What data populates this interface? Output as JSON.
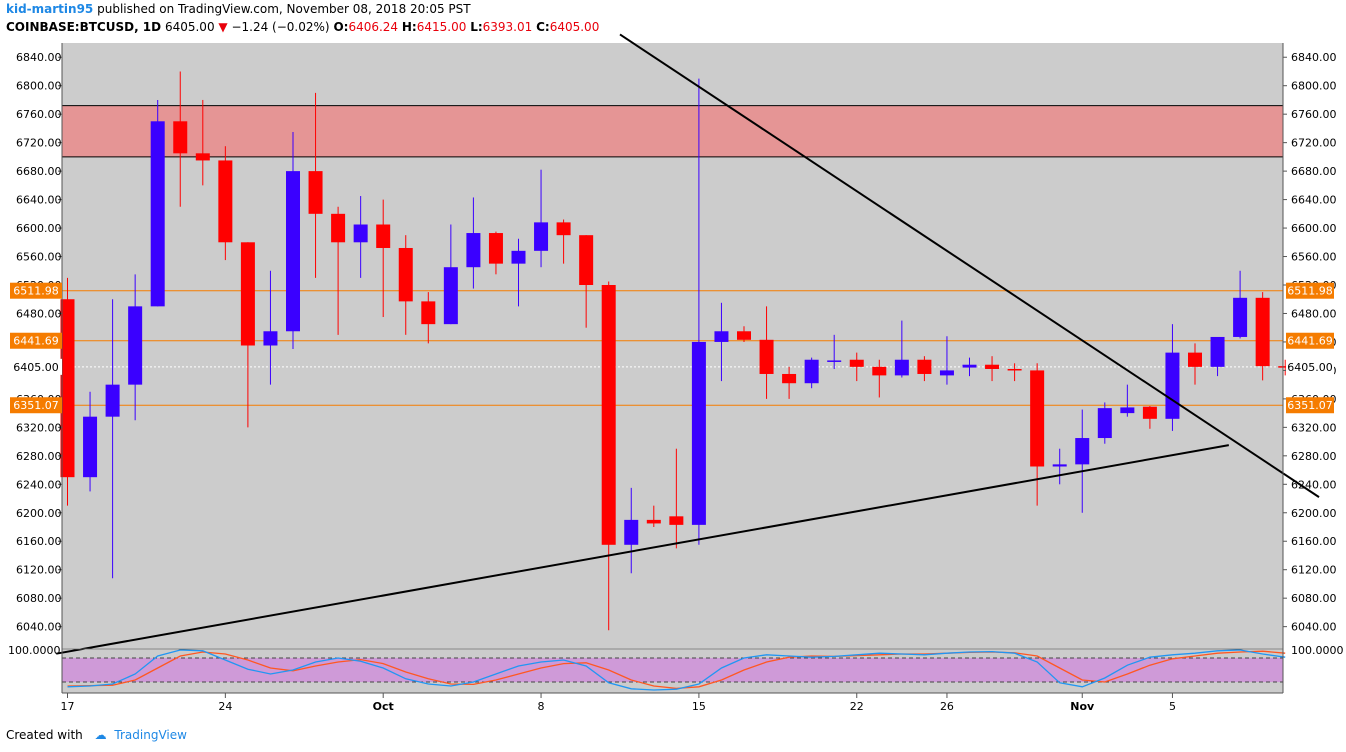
{
  "header": {
    "user": "kid-martin95",
    "published": "published on TradingView.com, November 08, 2018 20:05 PST",
    "symbol": "COINBASE:BTCUSD, 1D",
    "last": "6405.00",
    "change": "−1.24 (−0.02%)",
    "o_label": "O:",
    "o_val": "6406.24",
    "h_label": "H:",
    "h_val": "6415.00",
    "l_label": "L:",
    "l_val": "6393.01",
    "c_label": "C:",
    "c_val": "6405.00"
  },
  "footer": {
    "created": "Created with",
    "brand": "TradingView"
  },
  "colors": {
    "plot_bg": "#cccccc",
    "up": "#3a00ff",
    "down": "#ff0000",
    "zone": "#e59595",
    "level": "#f57c00",
    "osc_band": "#cf9ad8",
    "osc_k": "#2196f3",
    "osc_d": "#ff5722"
  },
  "chart_data": {
    "type": "candlestick",
    "ylim": [
      6010,
      6860
    ],
    "y_ticks": [
      "6040.00",
      "6080.00",
      "6120.00",
      "6160.00",
      "6200.00",
      "6240.00",
      "6280.00",
      "6320.00",
      "6360.00",
      "6400.00",
      "6440.00",
      "6480.00",
      "6520.00",
      "6560.00",
      "6600.00",
      "6640.00",
      "6680.00",
      "6720.00",
      "6760.00",
      "6800.00",
      "6840.00"
    ],
    "x_ticks": [
      {
        "label": "17",
        "day": 0
      },
      {
        "label": "24",
        "day": 7
      },
      {
        "label": "Oct",
        "day": 14
      },
      {
        "label": "8",
        "day": 21
      },
      {
        "label": "15",
        "day": 28
      },
      {
        "label": "22",
        "day": 35
      },
      {
        "label": "26",
        "day": 39
      },
      {
        "label": "Nov",
        "day": 45
      },
      {
        "label": "5",
        "day": 49
      }
    ],
    "candles": [
      {
        "o": 6500,
        "h": 6530,
        "l": 6210,
        "c": 6250
      },
      {
        "o": 6250,
        "h": 6370,
        "l": 6230,
        "c": 6335
      },
      {
        "o": 6335,
        "h": 6500,
        "l": 6108,
        "c": 6380
      },
      {
        "o": 6380,
        "h": 6535,
        "l": 6330,
        "c": 6490
      },
      {
        "o": 6490,
        "h": 6780,
        "l": 6490,
        "c": 6750
      },
      {
        "o": 6750,
        "h": 6820,
        "l": 6630,
        "c": 6705
      },
      {
        "o": 6705,
        "h": 6780,
        "l": 6660,
        "c": 6695
      },
      {
        "o": 6695,
        "h": 6715,
        "l": 6555,
        "c": 6580
      },
      {
        "o": 6580,
        "h": 6580,
        "l": 6320,
        "c": 6435
      },
      {
        "o": 6435,
        "h": 6540,
        "l": 6380,
        "c": 6455
      },
      {
        "o": 6455,
        "h": 6735,
        "l": 6430,
        "c": 6680
      },
      {
        "o": 6680,
        "h": 6790,
        "l": 6530,
        "c": 6620
      },
      {
        "o": 6620,
        "h": 6630,
        "l": 6450,
        "c": 6580
      },
      {
        "o": 6580,
        "h": 6645,
        "l": 6530,
        "c": 6605
      },
      {
        "o": 6605,
        "h": 6640,
        "l": 6475,
        "c": 6572
      },
      {
        "o": 6572,
        "h": 6590,
        "l": 6450,
        "c": 6497
      },
      {
        "o": 6497,
        "h": 6510,
        "l": 6438,
        "c": 6465
      },
      {
        "o": 6465,
        "h": 6605,
        "l": 6465,
        "c": 6545
      },
      {
        "o": 6545,
        "h": 6643,
        "l": 6515,
        "c": 6593
      },
      {
        "o": 6593,
        "h": 6595,
        "l": 6535,
        "c": 6550
      },
      {
        "o": 6550,
        "h": 6585,
        "l": 6490,
        "c": 6568
      },
      {
        "o": 6568,
        "h": 6682,
        "l": 6545,
        "c": 6608
      },
      {
        "o": 6608,
        "h": 6612,
        "l": 6550,
        "c": 6590
      },
      {
        "o": 6590,
        "h": 6590,
        "l": 6460,
        "c": 6520
      },
      {
        "o": 6520,
        "h": 6525,
        "l": 6035,
        "c": 6155
      },
      {
        "o": 6155,
        "h": 6235,
        "l": 6115,
        "c": 6190
      },
      {
        "o": 6190,
        "h": 6210,
        "l": 6180,
        "c": 6185
      },
      {
        "o": 6195,
        "h": 6290,
        "l": 6150,
        "c": 6183
      },
      {
        "o": 6183,
        "h": 6810,
        "l": 6155,
        "c": 6440
      },
      {
        "o": 6440,
        "h": 6495,
        "l": 6385,
        "c": 6455
      },
      {
        "o": 6455,
        "h": 6462,
        "l": 6440,
        "c": 6443
      },
      {
        "o": 6443,
        "h": 6490,
        "l": 6360,
        "c": 6395
      },
      {
        "o": 6395,
        "h": 6405,
        "l": 6360,
        "c": 6382
      },
      {
        "o": 6382,
        "h": 6418,
        "l": 6375,
        "c": 6415
      },
      {
        "o": 6412,
        "h": 6450,
        "l": 6402,
        "c": 6414
      },
      {
        "o": 6415,
        "h": 6425,
        "l": 6385,
        "c": 6405
      },
      {
        "o": 6405,
        "h": 6415,
        "l": 6362,
        "c": 6393
      },
      {
        "o": 6393,
        "h": 6470,
        "l": 6390,
        "c": 6415
      },
      {
        "o": 6415,
        "h": 6420,
        "l": 6385,
        "c": 6395
      },
      {
        "o": 6393,
        "h": 6448,
        "l": 6380,
        "c": 6400
      },
      {
        "o": 6404,
        "h": 6418,
        "l": 6392,
        "c": 6408
      },
      {
        "o": 6408,
        "h": 6420,
        "l": 6385,
        "c": 6402
      },
      {
        "o": 6402,
        "h": 6410,
        "l": 6385,
        "c": 6400
      },
      {
        "o": 6400,
        "h": 6410,
        "l": 6210,
        "c": 6265
      },
      {
        "o": 6265,
        "h": 6290,
        "l": 6240,
        "c": 6268
      },
      {
        "o": 6268,
        "h": 6345,
        "l": 6200,
        "c": 6305
      },
      {
        "o": 6305,
        "h": 6355,
        "l": 6297,
        "c": 6347
      },
      {
        "o": 6340,
        "h": 6380,
        "l": 6335,
        "c": 6348
      },
      {
        "o": 6349,
        "h": 6350,
        "l": 6318,
        "c": 6332
      },
      {
        "o": 6332,
        "h": 6465,
        "l": 6315,
        "c": 6425
      },
      {
        "o": 6425,
        "h": 6438,
        "l": 6380,
        "c": 6405
      },
      {
        "o": 6405,
        "h": 6445,
        "l": 6392,
        "c": 6447
      },
      {
        "o": 6447,
        "h": 6540,
        "l": 6445,
        "c": 6502
      },
      {
        "o": 6502,
        "h": 6510,
        "l": 6386,
        "c": 6406
      },
      {
        "o": 6406,
        "h": 6415,
        "l": 6393,
        "c": 6405
      }
    ],
    "zone": {
      "from": 6700,
      "to": 6772
    },
    "levels": [
      "6511.98",
      "6441.69",
      "6351.07"
    ],
    "current_price": "6405.00",
    "trendlines": [
      {
        "x1": -0.5,
        "y1": 6002,
        "x2": 51.5,
        "y2": 6295
      },
      {
        "x1": 24.5,
        "y1": 6872,
        "x2": 55.5,
        "y2": 6222
      }
    ],
    "oscillator": {
      "label": "100.0000",
      "upper": 80,
      "lower": 20,
      "k": [
        8,
        10,
        15,
        40,
        85,
        100,
        98,
        75,
        52,
        40,
        50,
        70,
        80,
        72,
        55,
        28,
        15,
        10,
        20,
        40,
        60,
        70,
        75,
        60,
        18,
        3,
        0,
        2,
        15,
        55,
        80,
        88,
        85,
        82,
        84,
        88,
        92,
        90,
        88,
        92,
        95,
        96,
        92,
        70,
        18,
        8,
        30,
        62,
        82,
        88,
        92,
        98,
        100,
        90,
        82
      ],
      "d": [
        10,
        11,
        12,
        25,
        55,
        85,
        95,
        90,
        75,
        55,
        48,
        60,
        70,
        76,
        66,
        45,
        28,
        15,
        14,
        25,
        40,
        55,
        66,
        68,
        50,
        25,
        10,
        4,
        8,
        25,
        50,
        70,
        82,
        85,
        84,
        86,
        88,
        90,
        90,
        92,
        94,
        95,
        93,
        85,
        55,
        25,
        20,
        40,
        62,
        78,
        85,
        92,
        95,
        97,
        92
      ]
    }
  }
}
